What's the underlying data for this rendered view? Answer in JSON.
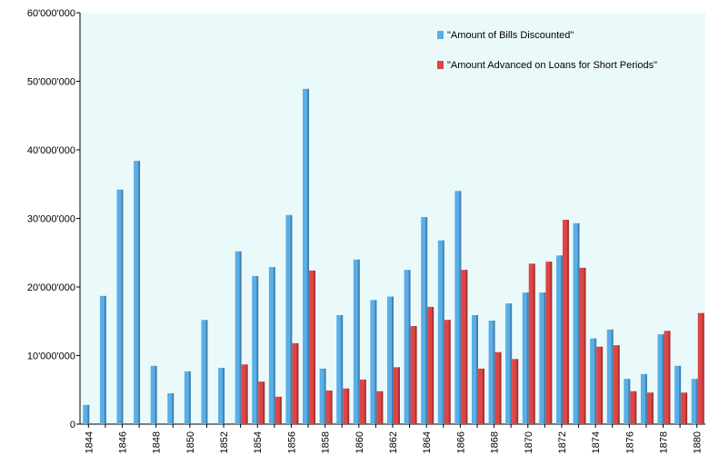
{
  "chart_data": {
    "type": "bar",
    "categories": [
      "1844",
      null,
      "1846",
      null,
      "1848",
      null,
      "1850",
      null,
      "1852",
      null,
      "1854",
      null,
      "1856",
      null,
      "1858",
      null,
      "1860",
      null,
      "1862",
      null,
      "1864",
      null,
      "1866",
      null,
      "1868",
      null,
      "1870",
      null,
      "1872",
      null,
      "1874",
      null,
      "1876",
      null,
      "1878",
      null,
      "1880"
    ],
    "series": [
      {
        "name": "\"Amount of Bills Discounted\"",
        "color": "#5aaee8",
        "values": [
          2800000,
          18700000,
          34200000,
          38400000,
          8500000,
          4500000,
          7700000,
          15200000,
          8200000,
          25200000,
          21600000,
          22900000,
          30500000,
          48900000,
          8100000,
          15900000,
          24000000,
          18100000,
          18600000,
          22500000,
          30200000,
          26800000,
          34000000,
          15900000,
          15100000,
          17600000,
          19200000,
          19200000,
          24600000,
          29300000,
          12500000,
          13800000,
          6600000,
          7300000,
          13100000,
          8500000,
          6600000
        ]
      },
      {
        "name": "\"Amount Advanced on Loans for Short Periods\"",
        "color": "#e04444",
        "values": [
          null,
          null,
          null,
          null,
          null,
          null,
          null,
          null,
          null,
          8700000,
          6200000,
          4000000,
          11800000,
          22400000,
          4900000,
          5200000,
          6500000,
          4800000,
          8300000,
          14300000,
          17100000,
          15200000,
          22500000,
          8100000,
          10500000,
          9500000,
          23400000,
          23700000,
          29800000,
          22800000,
          11300000,
          11500000,
          4800000,
          4600000,
          13600000,
          4600000,
          16200000
        ]
      }
    ],
    "ylim": [
      0,
      60000000
    ],
    "yticks": [
      0,
      {
        "value": 10000000,
        "label": "10'000'000"
      },
      {
        "value": 20000000,
        "label": "20'000'000"
      },
      {
        "value": 30000000,
        "label": "30'000'000"
      },
      {
        "value": 40000000,
        "label": "40'000'000"
      },
      {
        "value": 50000000,
        "label": "50'000'000"
      },
      {
        "value": 60000000,
        "label": "60'000'000"
      }
    ]
  }
}
